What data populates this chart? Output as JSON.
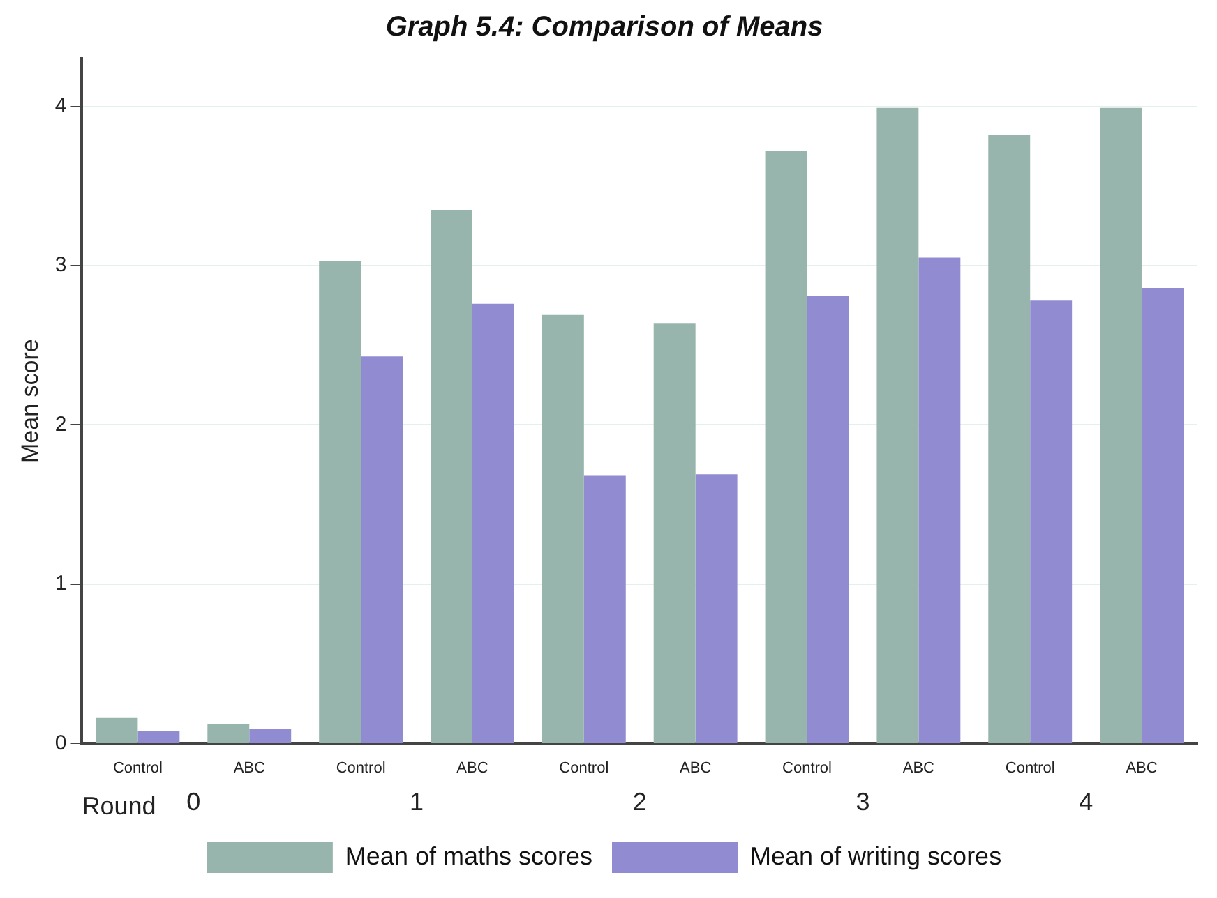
{
  "chart_data": {
    "type": "bar",
    "title": "Graph 5.4: Comparison of Means",
    "ylabel": "Mean score",
    "xlabel": "Round",
    "categories": [
      "Control",
      "ABC",
      "Control",
      "ABC",
      "Control",
      "ABC",
      "Control",
      "ABC",
      "Control",
      "ABC"
    ],
    "series": [
      {
        "name": "Mean of maths scores",
        "color": "#97b5ad",
        "values": [
          0.16,
          0.12,
          3.03,
          3.35,
          2.69,
          2.64,
          3.72,
          3.99,
          3.82,
          3.99
        ]
      },
      {
        "name": "Mean of writing scores",
        "color": "#918bd1",
        "values": [
          0.08,
          0.09,
          2.43,
          2.76,
          1.68,
          1.69,
          2.81,
          3.05,
          2.78,
          2.86
        ]
      }
    ],
    "annotations": [
      "0",
      "1",
      "2",
      "3",
      "4"
    ],
    "ylim": [
      0,
      4.3
    ],
    "yticks": [
      0,
      1,
      2,
      3,
      4
    ],
    "grid": "y",
    "legend": "bottom"
  }
}
